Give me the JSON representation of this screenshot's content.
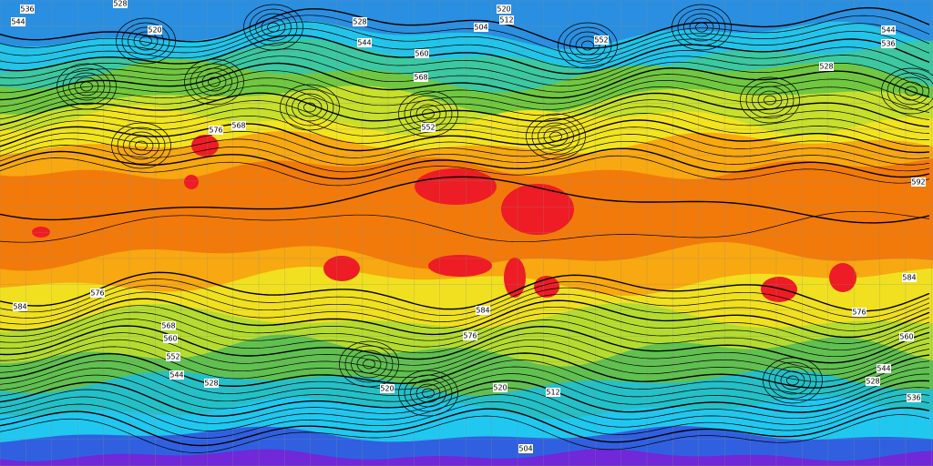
{
  "map": {
    "contour_labels": [
      "536",
      "528",
      "544",
      "520",
      "528",
      "544",
      "520",
      "512",
      "504",
      "552",
      "528",
      "544",
      "536",
      "568",
      "560",
      "552",
      "576",
      "568",
      "592",
      "584",
      "576",
      "584",
      "576",
      "584",
      "576",
      "568",
      "560",
      "552",
      "544",
      "528",
      "520",
      "512",
      "504",
      "520",
      "536",
      "528",
      "544",
      "560"
    ]
  }
}
